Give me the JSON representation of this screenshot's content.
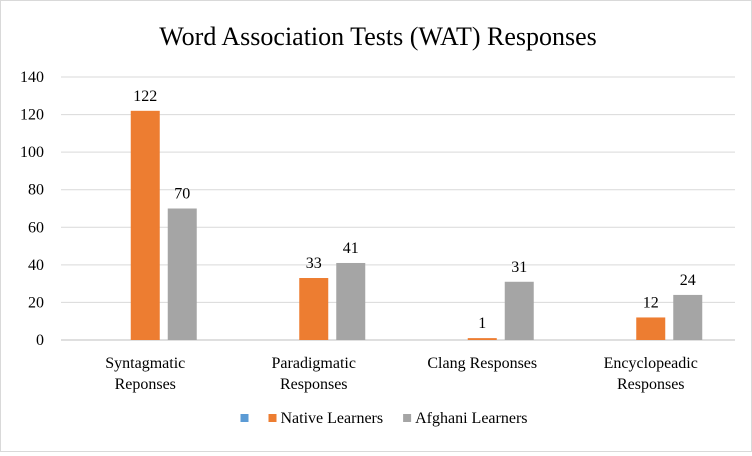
{
  "chart_data": {
    "type": "bar",
    "title": "Word Association  Tests (WAT) Responses",
    "categories": [
      [
        "Syntagmatic",
        "Reponses"
      ],
      [
        "Paradigmatic",
        "Responses"
      ],
      [
        "Clang Responses"
      ],
      [
        "Encyclopeadic",
        "Responses"
      ]
    ],
    "series": [
      {
        "name": "",
        "color": "#5b9bd5",
        "values": [
          null,
          null,
          null,
          null
        ],
        "labels": [
          "",
          "",
          "",
          ""
        ]
      },
      {
        "name": "Native Learners",
        "color": "#ed7d31",
        "values": [
          122,
          33,
          1,
          12
        ],
        "labels": [
          "122",
          "33",
          "1",
          "12"
        ]
      },
      {
        "name": "Afghani Learners",
        "color": "#a5a5a5",
        "values": [
          70,
          41,
          31,
          24
        ],
        "labels": [
          "70",
          "41",
          "31",
          "24"
        ]
      }
    ],
    "ylim": [
      0,
      140
    ],
    "yticks": [
      0,
      20,
      40,
      60,
      80,
      100,
      120,
      140
    ],
    "grid": true,
    "legend_position": "bottom"
  }
}
